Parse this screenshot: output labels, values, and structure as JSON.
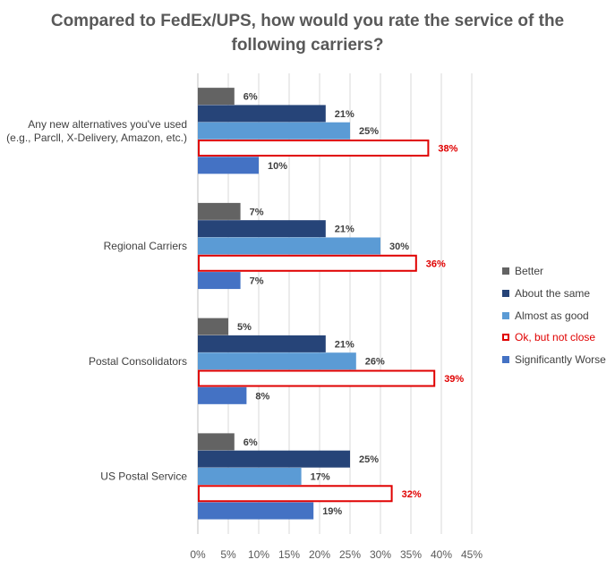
{
  "chart_data": {
    "type": "bar",
    "orientation": "horizontal",
    "title": "Compared to FedEx/UPS, how would you rate the service of the following carriers?",
    "categories": [
      "Any new alternatives you've used (e.g., Parcll, X-Delivery, Amazon, etc.)",
      "Regional Carriers",
      "Postal Consolidators",
      "US Postal Service"
    ],
    "series": [
      {
        "name": "Better",
        "values": [
          6,
          7,
          5,
          6
        ],
        "color": "#636363",
        "style": "filled"
      },
      {
        "name": "About the same",
        "values": [
          21,
          21,
          21,
          25
        ],
        "color": "#264478",
        "style": "filled"
      },
      {
        "name": "Almost as good",
        "values": [
          25,
          30,
          26,
          17
        ],
        "color": "#5B9BD5",
        "style": "filled"
      },
      {
        "name": "Ok, but not close",
        "values": [
          38,
          36,
          39,
          32
        ],
        "color": "#E00000",
        "style": "outline"
      },
      {
        "name": "Significantly Worse",
        "values": [
          10,
          7,
          8,
          19
        ],
        "color": "#4472C4",
        "style": "filled"
      }
    ],
    "category_labels": [
      [
        "Any new alternatives you've used",
        "(e.g., Parcll,  X-Delivery, Amazon, etc.)"
      ],
      [
        "Regional Carriers"
      ],
      [
        "Postal Consolidators"
      ],
      [
        "US Postal Service"
      ]
    ],
    "xlim": [
      0,
      45
    ],
    "xticks": [
      "0%",
      "5%",
      "10%",
      "15%",
      "20%",
      "25%",
      "30%",
      "35%",
      "40%",
      "45%"
    ],
    "value_suffix": "%",
    "grid": true,
    "legend_position": "right"
  }
}
